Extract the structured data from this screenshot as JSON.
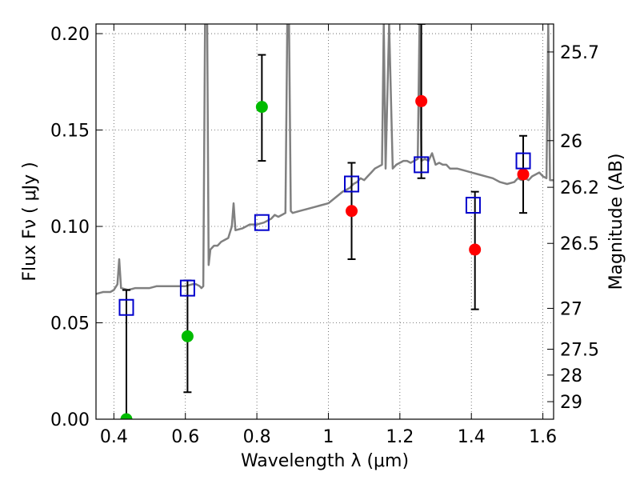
{
  "chart_data": {
    "type": "scatter",
    "xlabel": "Wavelength  λ (μm)",
    "ylabel": "Flux  Fν  ( μJy )",
    "ylabel_right": "Magnitude (AB)",
    "xlim": [
      0.35,
      1.63
    ],
    "ylim": [
      0.0,
      0.205
    ],
    "grid": true,
    "x_ticks": [
      0.4,
      0.6,
      0.8,
      1.0,
      1.2,
      1.4,
      1.6
    ],
    "x_tick_labels": [
      "0.4",
      "0.6",
      "0.8",
      "1",
      "1.2",
      "1.4",
      "1.6"
    ],
    "y_ticks": [
      0.0,
      0.05,
      0.1,
      0.15,
      0.2
    ],
    "y_tick_labels": [
      "0.00",
      "0.05",
      "0.10",
      "0.15",
      "0.20"
    ],
    "right_ticks": [
      {
        "flux": 0.1905,
        "label": "25.7"
      },
      {
        "flux": 0.1445,
        "label": "26"
      },
      {
        "flux": 0.1203,
        "label": "26.2"
      },
      {
        "flux": 0.0912,
        "label": "26.5"
      },
      {
        "flux": 0.0575,
        "label": "27"
      },
      {
        "flux": 0.0363,
        "label": "27.5"
      },
      {
        "flux": 0.0229,
        "label": "28"
      },
      {
        "flux": 0.0091,
        "label": "29"
      }
    ],
    "colors": {
      "model_line": "#808080",
      "green_points": "#00bb00",
      "red_points": "#ff0000",
      "squares": "#0000cc",
      "errorbars": "#000000",
      "grid": "#555555"
    },
    "series": [
      {
        "kind": "line",
        "points": [
          [
            0.35,
            0.065
          ],
          [
            0.37,
            0.066
          ],
          [
            0.39,
            0.066
          ],
          [
            0.4,
            0.067
          ],
          [
            0.41,
            0.07
          ],
          [
            0.415,
            0.083
          ],
          [
            0.42,
            0.068
          ],
          [
            0.44,
            0.067
          ],
          [
            0.46,
            0.068
          ],
          [
            0.48,
            0.068
          ],
          [
            0.5,
            0.068
          ],
          [
            0.52,
            0.069
          ],
          [
            0.54,
            0.069
          ],
          [
            0.56,
            0.069
          ],
          [
            0.58,
            0.069
          ],
          [
            0.6,
            0.069
          ],
          [
            0.62,
            0.07
          ],
          [
            0.63,
            0.07
          ],
          [
            0.64,
            0.069
          ],
          [
            0.645,
            0.068
          ],
          [
            0.65,
            0.069
          ],
          [
            0.655,
            0.205
          ],
          [
            0.658,
            0.205
          ],
          [
            0.661,
            0.205
          ],
          [
            0.665,
            0.08
          ],
          [
            0.67,
            0.088
          ],
          [
            0.68,
            0.09
          ],
          [
            0.69,
            0.09
          ],
          [
            0.7,
            0.092
          ],
          [
            0.71,
            0.093
          ],
          [
            0.72,
            0.094
          ],
          [
            0.73,
            0.1
          ],
          [
            0.735,
            0.112
          ],
          [
            0.74,
            0.098
          ],
          [
            0.76,
            0.099
          ],
          [
            0.78,
            0.101
          ],
          [
            0.8,
            0.101
          ],
          [
            0.82,
            0.102
          ],
          [
            0.84,
            0.104
          ],
          [
            0.85,
            0.106
          ],
          [
            0.86,
            0.105
          ],
          [
            0.87,
            0.106
          ],
          [
            0.88,
            0.107
          ],
          [
            0.885,
            0.205
          ],
          [
            0.89,
            0.205
          ],
          [
            0.895,
            0.108
          ],
          [
            0.9,
            0.107
          ],
          [
            0.92,
            0.108
          ],
          [
            0.94,
            0.109
          ],
          [
            0.96,
            0.11
          ],
          [
            0.98,
            0.111
          ],
          [
            1.0,
            0.112
          ],
          [
            1.02,
            0.115
          ],
          [
            1.04,
            0.118
          ],
          [
            1.06,
            0.12
          ],
          [
            1.07,
            0.122
          ],
          [
            1.08,
            0.123
          ],
          [
            1.09,
            0.125
          ],
          [
            1.1,
            0.124
          ],
          [
            1.11,
            0.126
          ],
          [
            1.12,
            0.128
          ],
          [
            1.13,
            0.13
          ],
          [
            1.14,
            0.131
          ],
          [
            1.15,
            0.132
          ],
          [
            1.155,
            0.205
          ],
          [
            1.16,
            0.13
          ],
          [
            1.17,
            0.205
          ],
          [
            1.18,
            0.13
          ],
          [
            1.19,
            0.132
          ],
          [
            1.2,
            0.133
          ],
          [
            1.21,
            0.134
          ],
          [
            1.22,
            0.134
          ],
          [
            1.23,
            0.133
          ],
          [
            1.24,
            0.134
          ],
          [
            1.25,
            0.135
          ],
          [
            1.255,
            0.205
          ],
          [
            1.26,
            0.134
          ],
          [
            1.27,
            0.135
          ],
          [
            1.28,
            0.134
          ],
          [
            1.29,
            0.138
          ],
          [
            1.3,
            0.132
          ],
          [
            1.31,
            0.133
          ],
          [
            1.32,
            0.132
          ],
          [
            1.33,
            0.132
          ],
          [
            1.34,
            0.13
          ],
          [
            1.36,
            0.13
          ],
          [
            1.38,
            0.129
          ],
          [
            1.4,
            0.128
          ],
          [
            1.42,
            0.127
          ],
          [
            1.44,
            0.126
          ],
          [
            1.46,
            0.125
          ],
          [
            1.48,
            0.123
          ],
          [
            1.5,
            0.122
          ],
          [
            1.52,
            0.123
          ],
          [
            1.53,
            0.125
          ],
          [
            1.54,
            0.124
          ],
          [
            1.55,
            0.125
          ],
          [
            1.56,
            0.124
          ],
          [
            1.57,
            0.126
          ],
          [
            1.58,
            0.127
          ],
          [
            1.59,
            0.128
          ],
          [
            1.6,
            0.126
          ],
          [
            1.61,
            0.125
          ],
          [
            1.615,
            0.205
          ],
          [
            1.62,
            0.124
          ],
          [
            1.63,
            0.124
          ]
        ]
      },
      {
        "kind": "points",
        "marker": "circle",
        "points": [
          {
            "x": 0.435,
            "y": 0.0
          },
          {
            "x": 0.606,
            "y": 0.043
          },
          {
            "x": 0.814,
            "y": 0.162
          }
        ]
      },
      {
        "kind": "points",
        "marker": "circle",
        "points": [
          {
            "x": 1.065,
            "y": 0.108
          },
          {
            "x": 1.26,
            "y": 0.165
          },
          {
            "x": 1.41,
            "y": 0.088
          },
          {
            "x": 1.545,
            "y": 0.127
          }
        ]
      },
      {
        "kind": "points",
        "marker": "square",
        "points": [
          {
            "x": 0.435,
            "y": 0.058
          },
          {
            "x": 0.606,
            "y": 0.068
          },
          {
            "x": 0.814,
            "y": 0.102
          },
          {
            "x": 1.065,
            "y": 0.122
          },
          {
            "x": 1.26,
            "y": 0.132
          },
          {
            "x": 1.405,
            "y": 0.111
          },
          {
            "x": 1.545,
            "y": 0.134
          }
        ]
      }
    ],
    "errorbars": [
      {
        "x": 0.435,
        "low": 0.0,
        "high": 0.067
      },
      {
        "x": 0.606,
        "low": 0.014,
        "high": 0.072
      },
      {
        "x": 0.814,
        "low": 0.134,
        "high": 0.189
      },
      {
        "x": 1.065,
        "low": 0.083,
        "high": 0.133
      },
      {
        "x": 1.26,
        "low": 0.125,
        "high": 0.205
      },
      {
        "x": 1.41,
        "low": 0.057,
        "high": 0.118
      },
      {
        "x": 1.545,
        "low": 0.107,
        "high": 0.147
      }
    ]
  }
}
